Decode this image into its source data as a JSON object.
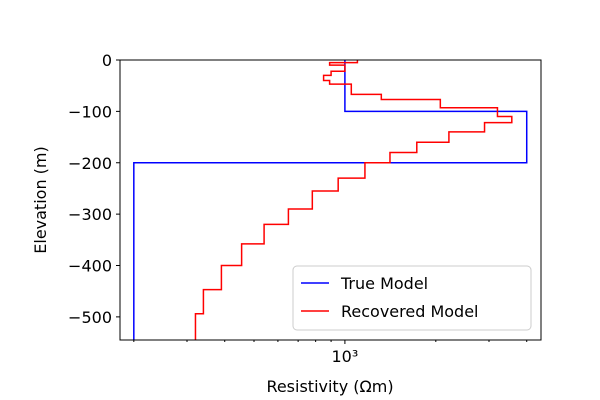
{
  "chart_data": {
    "type": "line",
    "xlabel": "Resistivity (Ωm)",
    "ylabel": "Elevation (m)",
    "xscale": "log",
    "xlim": [
      180,
      4460
    ],
    "ylim": [
      -545,
      0
    ],
    "xticks": [
      {
        "value": 1000,
        "label": "10³"
      }
    ],
    "xminorticks": [
      200,
      300,
      400,
      500,
      600,
      700,
      800,
      900,
      2000,
      3000,
      4000
    ],
    "yticks": [
      0,
      {
        "value": -100,
        "label": "−100"
      },
      {
        "value": -200,
        "label": "−200"
      },
      {
        "value": -300,
        "label": "−300"
      },
      {
        "value": -400,
        "label": "−400"
      },
      {
        "value": -500,
        "label": "−500"
      }
    ],
    "legend": "lower right",
    "series": [
      {
        "name": "True Model",
        "color": "#0000ff",
        "x": [
          1000,
          1000,
          4000,
          4000,
          200,
          200
        ],
        "y": [
          0,
          -100,
          -100,
          -200,
          -200,
          -545
        ]
      },
      {
        "name": "Recovered Model",
        "color": "#ff0000",
        "x": [
          1100,
          1100,
          890,
          890,
          1000,
          1000,
          900,
          900,
          850,
          850,
          890,
          890,
          1050,
          1050,
          1320,
          1320,
          2070,
          2070,
          3200,
          3200,
          3570,
          3570,
          2900,
          2900,
          2210,
          2210,
          1730,
          1730,
          1410,
          1410,
          1165,
          1165,
          950,
          950,
          780,
          780,
          650,
          650,
          540,
          540,
          455,
          455,
          390,
          390,
          340,
          340,
          320,
          320
        ],
        "y": [
          0,
          -5,
          -5,
          -10,
          -10,
          -22,
          -22,
          -30,
          -30,
          -40,
          -40,
          -47,
          -47,
          -67,
          -67,
          -77,
          -77,
          -93,
          -93,
          -110,
          -110,
          -122,
          -122,
          -140,
          -140,
          -160,
          -160,
          -180,
          -180,
          -200,
          -200,
          -230,
          -230,
          -255,
          -255,
          -290,
          -290,
          -320,
          -320,
          -358,
          -358,
          -400,
          -400,
          -447,
          -447,
          -494,
          -494,
          -545
        ]
      }
    ]
  }
}
